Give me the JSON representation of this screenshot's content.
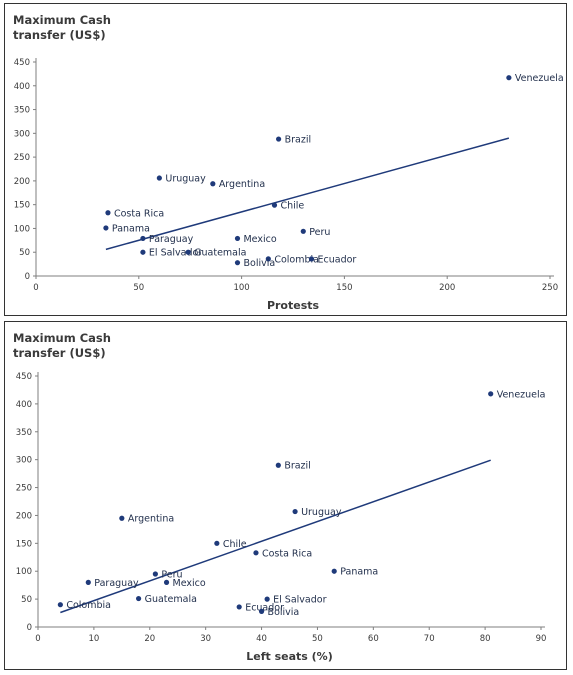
{
  "chart_data": [
    {
      "type": "scatter",
      "title_line1": "Maximum Cash",
      "title_line2": "transfer (US$)",
      "xlabel": "Protests",
      "xlim": [
        0,
        250
      ],
      "ylim": [
        0,
        450
      ],
      "x_ticks": [
        0,
        50,
        100,
        150,
        200,
        250
      ],
      "y_ticks": [
        0,
        50,
        100,
        150,
        200,
        250,
        300,
        350,
        400,
        450
      ],
      "points": [
        {
          "label": "Venezuela",
          "x": 230,
          "y": 417
        },
        {
          "label": "Brazil",
          "x": 118,
          "y": 288
        },
        {
          "label": "Uruguay",
          "x": 60,
          "y": 206
        },
        {
          "label": "Argentina",
          "x": 86,
          "y": 194
        },
        {
          "label": "Chile",
          "x": 116,
          "y": 149
        },
        {
          "label": "Costa Rica",
          "x": 35,
          "y": 133
        },
        {
          "label": "Panama",
          "x": 34,
          "y": 101
        },
        {
          "label": "Peru",
          "x": 130,
          "y": 94
        },
        {
          "label": "Paraguay",
          "x": 52,
          "y": 79
        },
        {
          "label": "Mexico",
          "x": 98,
          "y": 79
        },
        {
          "label": "El Salvador",
          "x": 52,
          "y": 50
        },
        {
          "label": "Guatemala",
          "x": 74,
          "y": 50
        },
        {
          "label": "Colombia",
          "x": 113,
          "y": 36
        },
        {
          "label": "Ecuador",
          "x": 134,
          "y": 36
        },
        {
          "label": "Bolivia",
          "x": 98,
          "y": 28
        }
      ],
      "trendline": [
        {
          "x": 34,
          "y": 56
        },
        {
          "x": 230,
          "y": 290
        }
      ]
    },
    {
      "type": "scatter",
      "title_line1": "Maximum Cash",
      "title_line2": "transfer (US$)",
      "xlabel": "Left seats (%)",
      "xlim": [
        0,
        90
      ],
      "ylim": [
        0,
        450
      ],
      "x_ticks": [
        0,
        10,
        20,
        30,
        40,
        50,
        60,
        70,
        80,
        90
      ],
      "y_ticks": [
        0,
        50,
        100,
        150,
        200,
        250,
        300,
        350,
        400,
        450
      ],
      "points": [
        {
          "label": "Venezuela",
          "x": 81,
          "y": 418
        },
        {
          "label": "Brazil",
          "x": 43,
          "y": 290
        },
        {
          "label": "Uruguay",
          "x": 46,
          "y": 207
        },
        {
          "label": "Argentina",
          "x": 15,
          "y": 195
        },
        {
          "label": "Chile",
          "x": 32,
          "y": 150
        },
        {
          "label": "Costa Rica",
          "x": 39,
          "y": 133
        },
        {
          "label": "Panama",
          "x": 53,
          "y": 100
        },
        {
          "label": "Peru",
          "x": 21,
          "y": 95
        },
        {
          "label": "Mexico",
          "x": 23,
          "y": 80
        },
        {
          "label": "Paraguay",
          "x": 9,
          "y": 80
        },
        {
          "label": "El Salvador",
          "x": 41,
          "y": 50
        },
        {
          "label": "Guatemala",
          "x": 18,
          "y": 51
        },
        {
          "label": "Colombia",
          "x": 4,
          "y": 40
        },
        {
          "label": "Ecuador",
          "x": 36,
          "y": 36
        },
        {
          "label": "Bolivia",
          "x": 40,
          "y": 28
        }
      ],
      "trendline": [
        {
          "x": 4,
          "y": 26
        },
        {
          "x": 81,
          "y": 299
        }
      ]
    }
  ]
}
